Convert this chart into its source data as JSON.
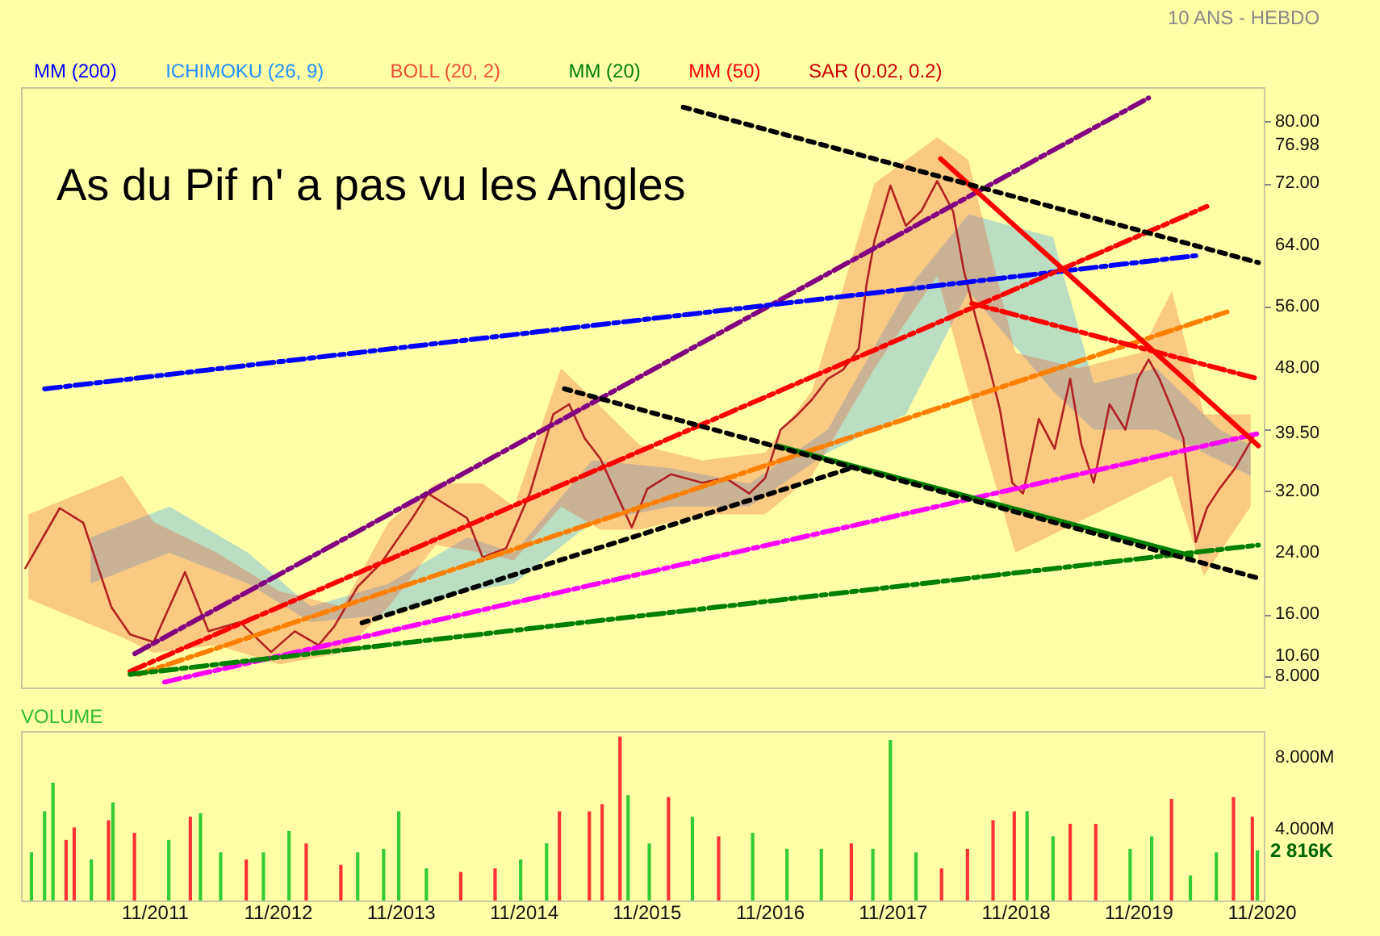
{
  "chart_data": [
    {
      "type": "line",
      "title": "As du Pif n' a pas vu les Angles",
      "subtitle": "10 ANS - HEBDO",
      "xlim": [
        "2010-10-01",
        "2020-11-08"
      ],
      "ylim": [
        6.5,
        84.5
      ],
      "yticks": [
        {
          "value": 8,
          "label": "8.000"
        },
        {
          "value": 10.6,
          "label": "10.60"
        },
        {
          "value": 16,
          "label": "16.00"
        },
        {
          "value": 24,
          "label": "24.00"
        },
        {
          "value": 32,
          "label": "32.00"
        },
        {
          "value": 39.5,
          "label": "39.50"
        },
        {
          "value": 40,
          "label": null
        },
        {
          "value": 48,
          "label": "48.00"
        },
        {
          "value": 56,
          "label": "56.00"
        },
        {
          "value": 64,
          "label": "64.00"
        },
        {
          "value": 72,
          "label": "72.00"
        },
        {
          "value": 76.98,
          "label": "76.98"
        },
        {
          "value": 80,
          "label": "80.00"
        }
      ],
      "tick_labels": "y",
      "marker": "none",
      "series": [
        {
          "name": "MM (200)",
          "color": "#0000ff"
        },
        {
          "name": "ICHIMOKU (26, 9)",
          "color": "#1e90ff",
          "x": [
            "2011-04-26",
            "2011-12-16",
            "2012-08-05",
            "2013-02-07",
            "2013-09-27",
            "2014-05-18",
            "2014-10-04",
            "2015-05-25",
            "2016-01-13",
            "2016-09-02",
            "2017-04-23",
            "2017-12-11",
            "2018-06-15",
            "2019-02-21",
            "2019-06-22",
            "2019-12-25",
            "2020-06-29",
            "2020-09-30"
          ],
          "values": [
            null,
            null,
            null,
            null,
            null,
            null,
            null,
            null,
            null,
            null,
            null,
            null,
            null,
            null,
            null,
            null,
            null,
            null
          ],
          "lower": [
            20,
            24,
            20,
            15,
            16,
            19,
            20,
            28,
            30,
            30,
            37,
            42,
            58,
            45,
            40,
            40,
            36,
            34
          ],
          "upper": [
            26,
            30,
            24,
            17,
            20,
            26,
            24,
            36,
            35,
            33,
            40,
            58,
            68,
            65,
            46,
            48,
            40,
            38
          ]
        },
        {
          "name": "BOLL (20, 2)",
          "color": "#f05030",
          "x": [
            "2010-10-23",
            "2011-07-29",
            "2011-10-30",
            "2012-05-05",
            "2012-11-06",
            "2013-05-12",
            "2013-09-27",
            "2014-02-14",
            "2014-07-03",
            "2014-10-04",
            "2015-02-21",
            "2015-06-18",
            "2015-10-12",
            "2016-04-15",
            "2016-10-19",
            "2017-03-07",
            "2017-09-09",
            "2018-03-14",
            "2018-06-15",
            "2018-11-01",
            "2019-05-07",
            "2019-11-08",
            "2020-02-09",
            "2020-05-14",
            "2020-09-30"
          ],
          "values": [
            null,
            null,
            null,
            null,
            null,
            null,
            null,
            null,
            null,
            null,
            null,
            null,
            null,
            null,
            null,
            null,
            null,
            null,
            null,
            null,
            null,
            null,
            null,
            null,
            null
          ],
          "lower": [
            18,
            13,
            11,
            12,
            9.5,
            11,
            17,
            25,
            24,
            23,
            30,
            27,
            27,
            29,
            29,
            34,
            48,
            60,
            45,
            24,
            28,
            32,
            34,
            21,
            30
          ],
          "upper": [
            29,
            34,
            28,
            24,
            19,
            17,
            28,
            33,
            33,
            30,
            48,
            43,
            38,
            36,
            37,
            45,
            72,
            78,
            75,
            50,
            48,
            50,
            58,
            42,
            42
          ]
        },
        {
          "name": "MM (20)",
          "color": "#008000"
        },
        {
          "name": "MM (50)",
          "color": "#ff0000"
        },
        {
          "name": "SAR (0.02, 0.2)",
          "color": "#cc0000"
        },
        {
          "color": "#b22222",
          "x": [
            "2010-10-14",
            "2011-01-24",
            "2011-04-04",
            "2011-06-27",
            "2011-08-21",
            "2011-10-30",
            "2012-01-31",
            "2012-04-10",
            "2012-07-12",
            "2012-10-13",
            "2012-12-22",
            "2013-03-03",
            "2013-04-18",
            "2013-06-27",
            "2013-09-05",
            "2013-12-06",
            "2014-01-22",
            "2014-04-01",
            "2014-05-18",
            "2014-07-03",
            "2014-09-11",
            "2014-11-20",
            "2015-01-29",
            "2015-03-17",
            "2015-05-02",
            "2015-06-18",
            "2015-08-04",
            "2015-09-19",
            "2015-11-04",
            "2016-01-13",
            "2016-04-15",
            "2016-06-24",
            "2016-09-02",
            "2016-10-19",
            "2016-12-04",
            "2017-01-20",
            "2017-03-07",
            "2017-04-23",
            "2017-06-08",
            "2017-07-24",
            "2017-08-16",
            "2017-09-09",
            "2017-10-26",
            "2017-12-11",
            "2018-01-26",
            "2018-03-14",
            "2018-04-30",
            "2018-06-01",
            "2018-07-08",
            "2018-08-10",
            "2018-09-16",
            "2018-10-23",
            "2018-11-24",
            "2019-01-10",
            "2019-02-26",
            "2019-04-13",
            "2019-05-16",
            "2019-06-22",
            "2019-08-08",
            "2019-09-24",
            "2019-10-31",
            "2019-12-02",
            "2020-01-03",
            "2020-02-09",
            "2020-03-14",
            "2020-04-20",
            "2020-05-23",
            "2020-06-29",
            "2020-08-15",
            "2020-09-17",
            "2020-10-14"
          ],
          "values": [
            22.0,
            29.8,
            27.9,
            16.9,
            13.4,
            12.4,
            21.5,
            13.8,
            15.0,
            11.1,
            13.8,
            12.0,
            14.4,
            19.6,
            22.7,
            28.5,
            31.7,
            29.8,
            28.5,
            23.4,
            24.6,
            31.7,
            42.0,
            43.3,
            38.9,
            36.2,
            31.7,
            27.3,
            32.3,
            34.2,
            33.1,
            33.7,
            31.7,
            33.7,
            40.0,
            41.8,
            43.9,
            46.6,
            47.8,
            50.5,
            58.8,
            64.6,
            71.7,
            66.5,
            68.4,
            72.3,
            68.4,
            60.7,
            54.3,
            49.1,
            42.7,
            33.1,
            31.7,
            41.4,
            37.5,
            46.6,
            38.1,
            33.1,
            43.3,
            40.0,
            46.6,
            49.1,
            46.6,
            42.7,
            38.9,
            25.4,
            29.8,
            32.3,
            35.0,
            37.5,
            39.5
          ]
        },
        {
          "color": "#800080",
          "line_style": "dashed",
          "x": [
            "2011-09-04",
            "2019-12-02"
          ],
          "values": [
            10.9,
            83.1
          ]
        },
        {
          "color": "#0000ff",
          "line_style": "dashed",
          "x": [
            "2010-12-10",
            "2020-04-20"
          ],
          "values": [
            45.3,
            62.6
          ]
        },
        {
          "color": "#ff0000",
          "line_style": "dashed",
          "x": [
            "2011-08-21",
            "2020-05-23"
          ],
          "values": [
            8.6,
            69.0
          ]
        },
        {
          "color": "#ff8000",
          "line_style": "dashed",
          "x": [
            "2011-09-14",
            "2020-07-22"
          ],
          "values": [
            8.2,
            55.3
          ]
        },
        {
          "color": "#ff00ff",
          "line_style": "dashed",
          "x": [
            "2011-12-01",
            "2020-10-23"
          ],
          "values": [
            7.2,
            39.5
          ]
        },
        {
          "color": "#008000",
          "line_style": "dashed",
          "x": [
            "2011-08-21",
            "2020-10-23"
          ],
          "values": [
            8.2,
            25.0
          ]
        },
        {
          "color": "#008000",
          "line_style": "solid",
          "x": [
            "2016-11-24",
            "2020-04-06"
          ],
          "values": [
            37.9,
            23.6
          ]
        },
        {
          "color": "#ff0000",
          "line_style": "solid",
          "x": [
            "2018-03-24",
            "2020-10-23"
          ],
          "values": [
            75.2,
            37.9
          ]
        },
        {
          "color": "#000000",
          "line_style": "dotted",
          "x": [
            "2016-02-19",
            "2020-10-23"
          ],
          "values": [
            81.9,
            61.7
          ]
        },
        {
          "color": "#000000",
          "line_style": "dotted",
          "x": [
            "2015-03-03",
            "2020-10-23"
          ],
          "values": [
            45.3,
            20.7
          ]
        },
        {
          "color": "#000000",
          "line_style": "dotted",
          "x": [
            "2013-07-10",
            "2017-07-01"
          ],
          "values": [
            14.9,
            35.0
          ]
        },
        {
          "color": "#ff0000",
          "line_style": "dashed",
          "x": [
            "2018-06-25",
            "2020-10-23"
          ],
          "values": [
            56.4,
            46.6
          ]
        }
      ]
    },
    {
      "type": "bar",
      "title": "VOLUME",
      "xlim": [
        "2010-10-01",
        "2020-11-08"
      ],
      "ylim": [
        0,
        9500000
      ],
      "yticks": [
        {
          "value": 4000000,
          "label": "4.000M"
        },
        {
          "value": 8000000,
          "label": "8.000M"
        }
      ],
      "annotations": [
        {
          "text": "2 816K",
          "x": "2020-10-20",
          "y": 2816000
        }
      ],
      "xticks": [
        {
          "value": "2011-11-01",
          "label": "11/2011"
        },
        {
          "value": "2012-11-01",
          "label": "11/2012"
        },
        {
          "value": "2013-11-01",
          "label": "11/2013"
        },
        {
          "value": "2014-11-01",
          "label": "11/2014"
        },
        {
          "value": "2015-11-01",
          "label": "11/2015"
        },
        {
          "value": "2016-11-01",
          "label": "11/2016"
        },
        {
          "value": "2017-11-01",
          "label": "11/2017"
        },
        {
          "value": "2018-11-01",
          "label": "11/2018"
        },
        {
          "value": "2019-11-01",
          "label": "11/2019"
        },
        {
          "value": "2020-11-01",
          "label": "11/2020"
        }
      ],
      "x": [
        "2010-11-01",
        "2010-12-10",
        "2011-01-04",
        "2011-02-12",
        "2011-03-08",
        "2011-04-28",
        "2011-06-18",
        "2011-07-01",
        "2011-09-03",
        "2011-12-14",
        "2012-02-16",
        "2012-03-17",
        "2012-05-16",
        "2012-07-31",
        "2012-09-20",
        "2012-12-05",
        "2013-01-25",
        "2013-05-08",
        "2013-06-27",
        "2013-09-12",
        "2013-10-27",
        "2014-01-17",
        "2014-04-29",
        "2014-08-09",
        "2014-10-24",
        "2015-01-09",
        "2015-02-16",
        "2015-05-16",
        "2015-06-23",
        "2015-08-15",
        "2015-09-08",
        "2015-11-10",
        "2016-01-06",
        "2016-03-17",
        "2016-06-03",
        "2016-09-12",
        "2016-12-23",
        "2017-04-04",
        "2017-07-02",
        "2017-09-04",
        "2017-10-26",
        "2018-01-10",
        "2018-03-27",
        "2018-06-12",
        "2018-08-27",
        "2018-10-29",
        "2018-12-06",
        "2019-02-21",
        "2019-04-13",
        "2019-06-28",
        "2019-10-08",
        "2019-12-11",
        "2020-02-08",
        "2020-04-04",
        "2020-06-20",
        "2020-08-10",
        "2020-10-05",
        "2020-10-20"
      ],
      "values": [
        2700000,
        5000000,
        6600000,
        3400000,
        4100000,
        2300000,
        4500000,
        5500000,
        3800000,
        3400000,
        4700000,
        4900000,
        2700000,
        2300000,
        2700000,
        3900000,
        3200000,
        2000000,
        2700000,
        2900000,
        5000000,
        1800000,
        1600000,
        1800000,
        2300000,
        3200000,
        5000000,
        5000000,
        5400000,
        9200000,
        5900000,
        3200000,
        5800000,
        4700000,
        3600000,
        3800000,
        2900000,
        2900000,
        3200000,
        2900000,
        9000000,
        2700000,
        1800000,
        2900000,
        4500000,
        5000000,
        5000000,
        3600000,
        4300000,
        4300000,
        2900000,
        3600000,
        5700000,
        1400000,
        2700000,
        5800000,
        4700000,
        2816000
      ],
      "colors": [
        "#33cc33",
        "#33cc33",
        "#33cc33",
        "#ff3333",
        "#ff3333",
        "#33cc33",
        "#ff3333",
        "#33cc33",
        "#ff3333",
        "#33cc33",
        "#ff3333",
        "#33cc33",
        "#33cc33",
        "#ff3333",
        "#33cc33",
        "#33cc33",
        "#ff3333",
        "#ff3333",
        "#33cc33",
        "#33cc33",
        "#33cc33",
        "#33cc33",
        "#ff3333",
        "#ff3333",
        "#33cc33",
        "#33cc33",
        "#ff3333",
        "#ff3333",
        "#ff3333",
        "#ff3333",
        "#33cc33",
        "#33cc33",
        "#ff3333",
        "#33cc33",
        "#ff3333",
        "#33cc33",
        "#33cc33",
        "#33cc33",
        "#ff3333",
        "#33cc33",
        "#33cc33",
        "#33cc33",
        "#ff3333",
        "#ff3333",
        "#ff3333",
        "#ff3333",
        "#33cc33",
        "#33cc33",
        "#ff3333",
        "#ff3333",
        "#33cc33",
        "#33cc33",
        "#ff3333",
        "#33cc33",
        "#33cc33",
        "#ff3333",
        "#ff3333",
        "#33cc33"
      ]
    }
  ]
}
